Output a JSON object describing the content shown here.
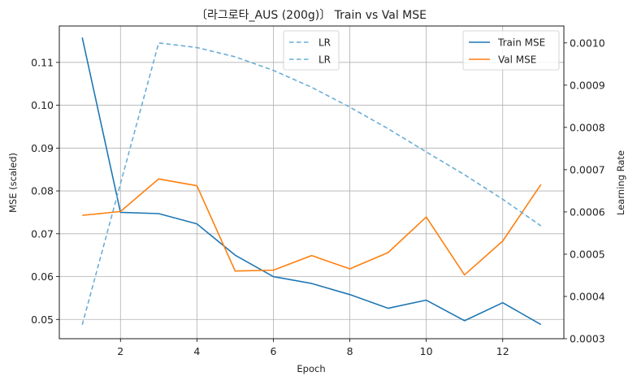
{
  "chart_data": {
    "type": "line",
    "title": "〔라그로타_AUS (200g)〕 Train vs Val MSE",
    "xlabel": "Epoch",
    "ylabel": "MSE (scaled)",
    "y2label": "Learning Rate",
    "xlim": [
      0.4,
      13.6
    ],
    "ylim": [
      0.0455,
      0.1185
    ],
    "y2lim": [
      0.0003,
      0.00104
    ],
    "x_ticks": [
      2,
      4,
      6,
      8,
      10,
      12
    ],
    "y_ticks": [
      0.05,
      0.06,
      0.07,
      0.08,
      0.09,
      0.1,
      0.11
    ],
    "y2_ticks": [
      0.0003,
      0.0004,
      0.0005,
      0.0006,
      0.0007,
      0.0008,
      0.0009,
      0.001
    ],
    "grid": true,
    "x": [
      1,
      2,
      3,
      4,
      5,
      6,
      7,
      8,
      9,
      10,
      11,
      12,
      13
    ],
    "series": [
      {
        "name": "Train MSE",
        "axis": "left",
        "color": "#1f77b4",
        "style": "solid",
        "values": [
          0.1158,
          0.075,
          0.0747,
          0.0723,
          0.065,
          0.06,
          0.0584,
          0.0558,
          0.0526,
          0.0545,
          0.0497,
          0.0539,
          0.0488
        ]
      },
      {
        "name": "Val MSE",
        "axis": "left",
        "color": "#ff7f0e",
        "style": "solid",
        "values": [
          0.0743,
          0.0752,
          0.0828,
          0.0812,
          0.0613,
          0.0615,
          0.0649,
          0.0618,
          0.0656,
          0.0739,
          0.0604,
          0.0683,
          0.0815
        ]
      },
      {
        "name": "LR",
        "axis": "right",
        "color": "#6aaed6",
        "style": "dashed",
        "values": [
          0.000333,
          0.000667,
          0.001,
          0.000989,
          0.000967,
          0.000935,
          0.000895,
          0.000848,
          0.000797,
          0.000742,
          0.000688,
          0.00063,
          0.000567
        ]
      }
    ],
    "legends": {
      "left": {
        "placement": "upper-right",
        "entries": [
          "Train MSE",
          "Val MSE"
        ]
      },
      "right": {
        "placement": "upper-center",
        "entries": [
          "LR",
          "LR"
        ]
      }
    }
  }
}
